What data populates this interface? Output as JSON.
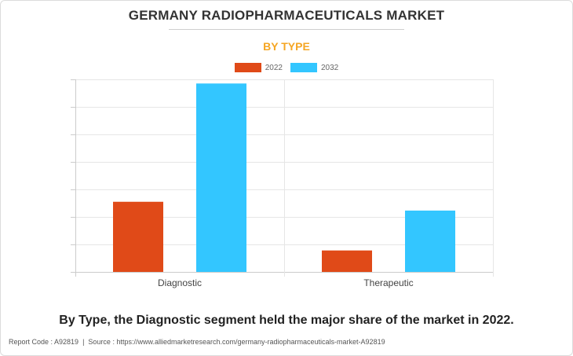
{
  "header": {
    "title": "GERMANY RADIOPHARMACEUTICALS MARKET",
    "subtitle": "BY TYPE"
  },
  "colors": {
    "series_2022": "#e04a18",
    "series_2032": "#33c6ff",
    "subtitle": "#f5a623",
    "grid": "#e6e6e6",
    "axis": "#cccccc"
  },
  "chart_data": {
    "type": "bar",
    "categories": [
      "Diagnostic",
      "Therapeutic"
    ],
    "series": [
      {
        "name": "2022",
        "values": [
          2.55,
          0.78
        ]
      },
      {
        "name": "2032",
        "values": [
          6.85,
          2.23
        ]
      }
    ],
    "ylim": [
      0,
      7.0
    ],
    "grid": true,
    "legend": "top-center"
  },
  "caption": "By Type, the Diagnostic segment held the major share of the market in 2022.",
  "footer": {
    "report_code": "Report Code : A92819",
    "source": "Source : https://www.alliedmarketresearch.com/germany-radiopharmaceuticals-market-A92819"
  }
}
